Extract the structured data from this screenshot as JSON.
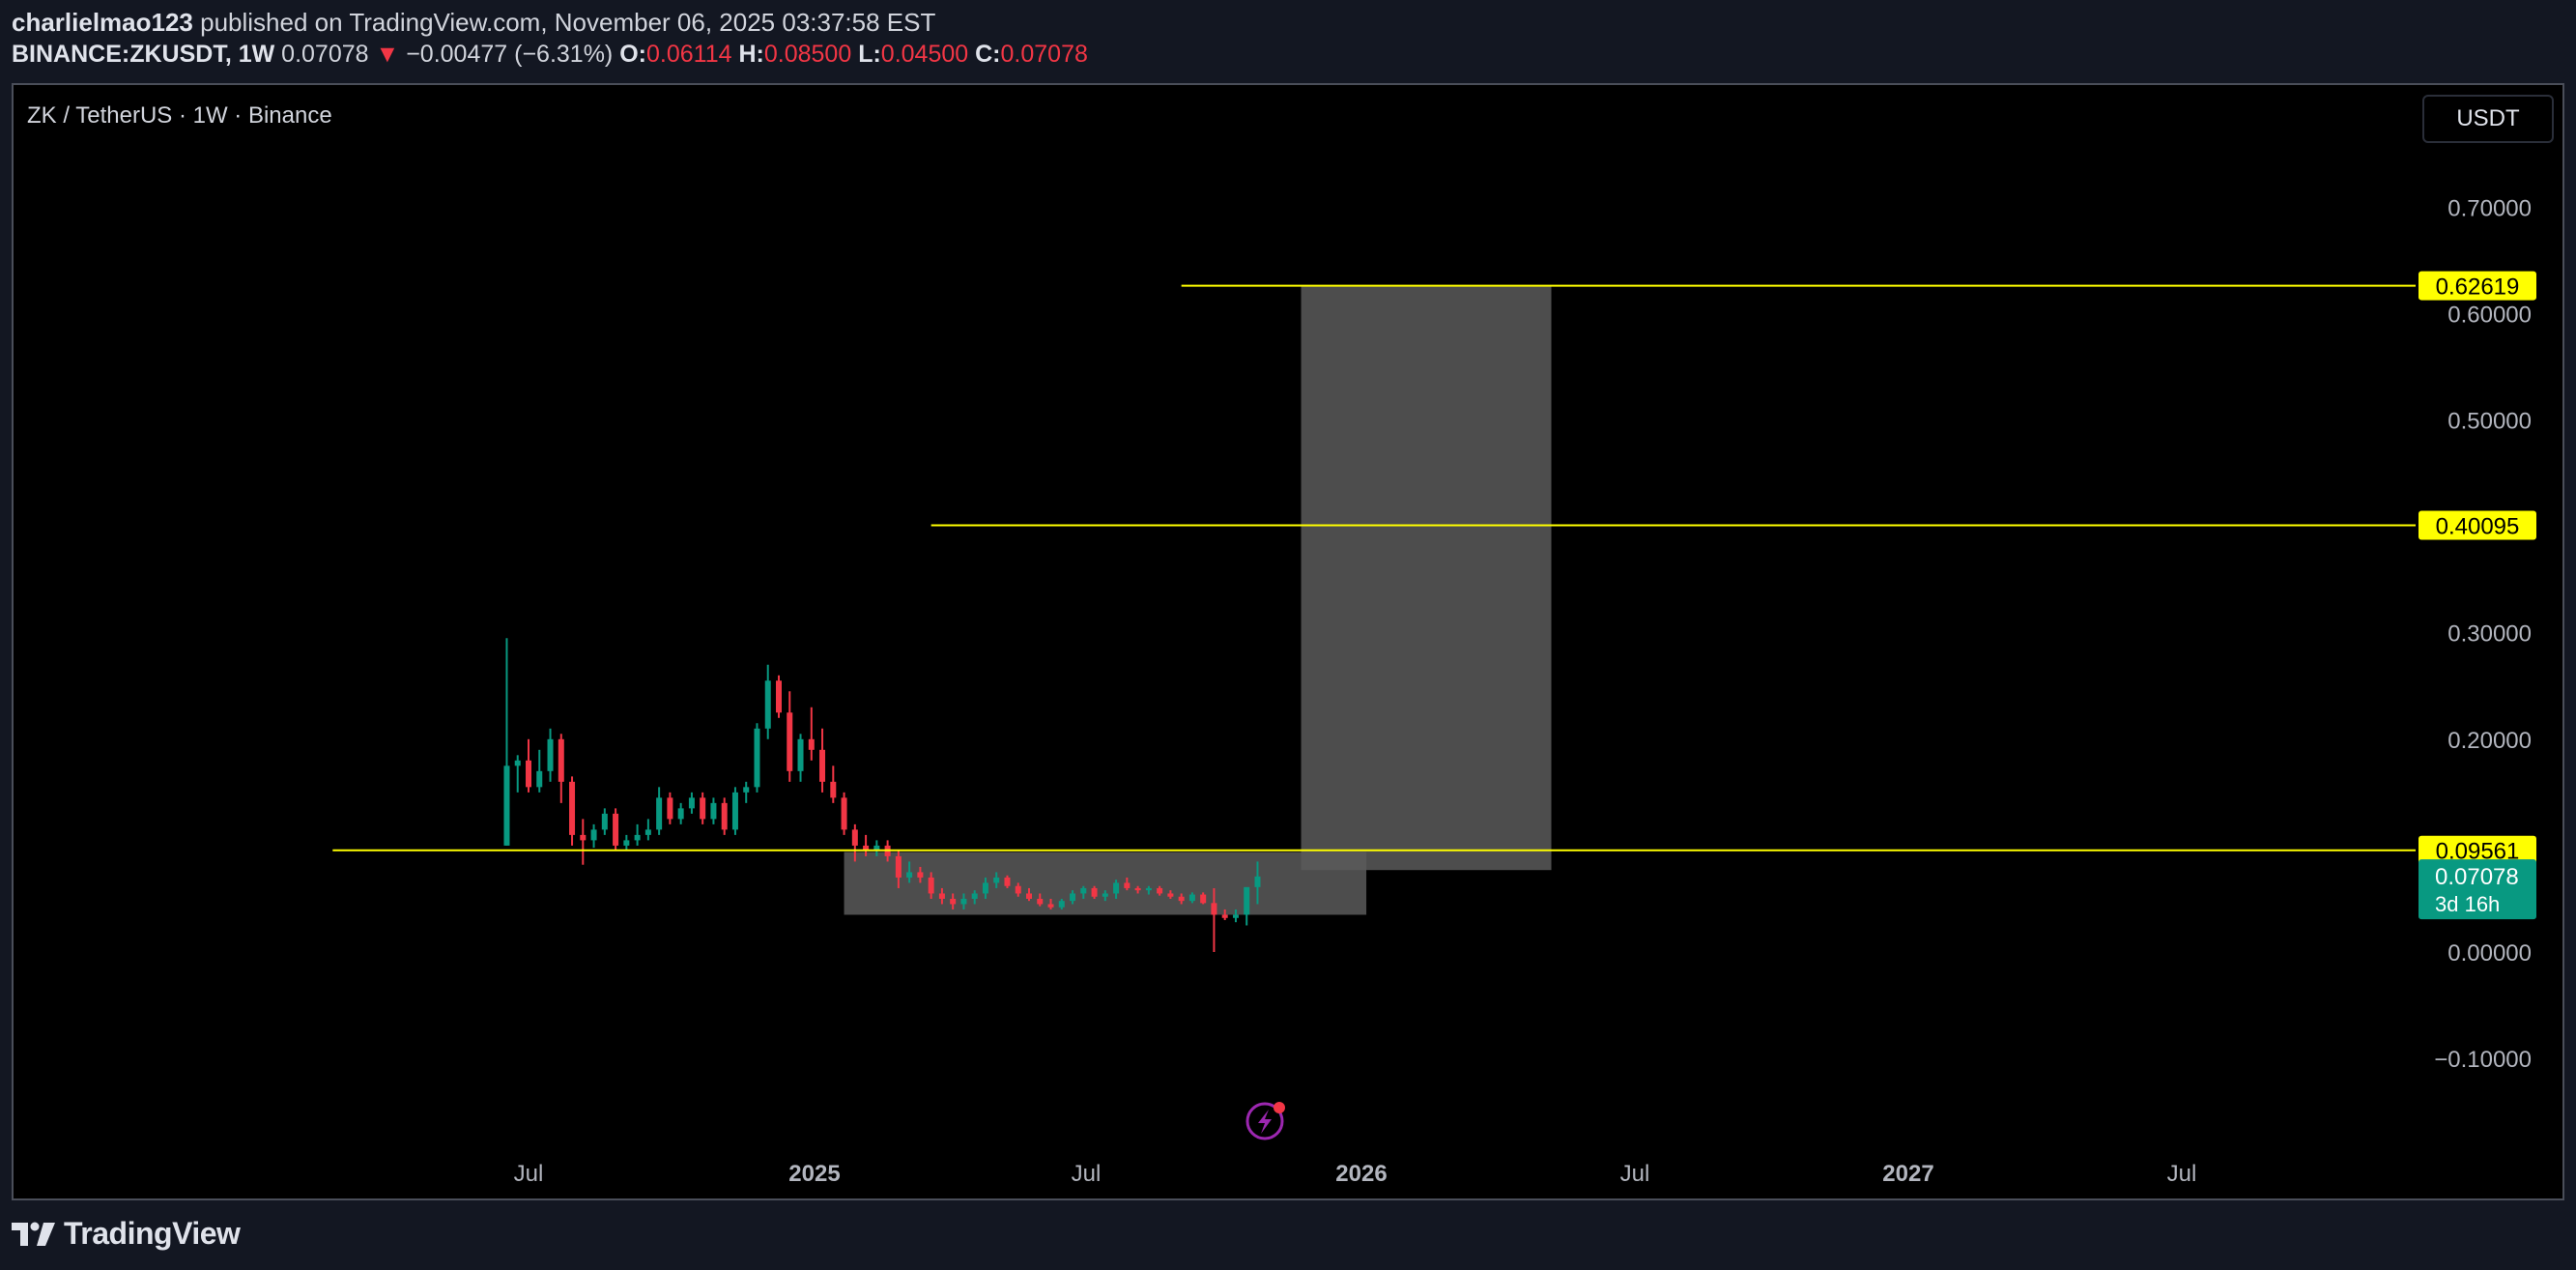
{
  "header": {
    "author": "charlielmao123",
    "published_text": "published on TradingView.com, November 06, 2025 03:37:58 EST",
    "symbol": "BINANCE:ZKUSDT, 1W",
    "last": "0.07078",
    "change_arrow": "▼",
    "change": "−0.00477 (−6.31%)",
    "o_label": "O:",
    "o_value": "0.06114",
    "h_label": "H:",
    "h_value": "0.08500",
    "l_label": "L:",
    "l_value": "0.04500",
    "c_label": "C:",
    "c_value": "0.07078"
  },
  "chart_title": "ZK / TetherUS · 1W · Binance",
  "currency_button": "USDT",
  "footer": {
    "logo_text": "TradingView",
    "logo_icon": "tradingview-logo-icon"
  },
  "colors": {
    "up": "#089981",
    "down": "#f23645",
    "level_line": "#ffff00",
    "zone_fill": "#5a5a5a",
    "price_label_bg": "#089981"
  },
  "chart_data": {
    "type": "candlestick",
    "title": "ZK / TetherUS · 1W · Binance",
    "y_ticks": [
      "0.70000",
      "0.60000",
      "0.50000",
      "0.40000",
      "0.30000",
      "0.20000",
      "0.00000",
      "−0.10000"
    ],
    "x_ticks": [
      "Jul",
      "2025",
      "Jul",
      "2026",
      "Jul",
      "2027",
      "Jul"
    ],
    "levels": [
      {
        "value": 0.62619,
        "label": "0.62619",
        "from_date": "2025-08-25"
      },
      {
        "value": 0.40095,
        "label": "0.40095",
        "from_date": "2025-03-17"
      },
      {
        "value": 0.09561,
        "label": "0.09561",
        "from_date": "2024-02-26"
      }
    ],
    "current_price": {
      "value": 0.07078,
      "label": "0.07078",
      "countdown": "3d 16h"
    },
    "zones": [
      {
        "x_start": "2025-01-20",
        "x_end": "2025-12-22",
        "y_low": 0.035,
        "y_high": 0.094
      },
      {
        "x_start": "2025-11-10",
        "x_end": "2026-04-20",
        "y_low": 0.077,
        "y_high": 0.626
      }
    ],
    "candles": [
      {
        "date": "2024-06-17",
        "o": 0.1,
        "h": 0.295,
        "l": 0.1,
        "c": 0.175
      },
      {
        "date": "2024-06-24",
        "o": 0.175,
        "h": 0.185,
        "l": 0.15,
        "c": 0.18
      },
      {
        "date": "2024-07-01",
        "o": 0.18,
        "h": 0.2,
        "l": 0.15,
        "c": 0.155
      },
      {
        "date": "2024-07-08",
        "o": 0.155,
        "h": 0.19,
        "l": 0.15,
        "c": 0.17
      },
      {
        "date": "2024-07-15",
        "o": 0.17,
        "h": 0.21,
        "l": 0.16,
        "c": 0.2
      },
      {
        "date": "2024-07-22",
        "o": 0.2,
        "h": 0.205,
        "l": 0.14,
        "c": 0.16
      },
      {
        "date": "2024-07-29",
        "o": 0.16,
        "h": 0.165,
        "l": 0.1,
        "c": 0.11
      },
      {
        "date": "2024-08-05",
        "o": 0.11,
        "h": 0.125,
        "l": 0.082,
        "c": 0.105
      },
      {
        "date": "2024-08-12",
        "o": 0.105,
        "h": 0.12,
        "l": 0.098,
        "c": 0.115
      },
      {
        "date": "2024-08-19",
        "o": 0.115,
        "h": 0.135,
        "l": 0.11,
        "c": 0.13
      },
      {
        "date": "2024-08-26",
        "o": 0.13,
        "h": 0.135,
        "l": 0.095,
        "c": 0.1
      },
      {
        "date": "2024-09-02",
        "o": 0.1,
        "h": 0.11,
        "l": 0.095,
        "c": 0.105
      },
      {
        "date": "2024-09-09",
        "o": 0.105,
        "h": 0.12,
        "l": 0.1,
        "c": 0.11
      },
      {
        "date": "2024-09-16",
        "o": 0.11,
        "h": 0.125,
        "l": 0.105,
        "c": 0.115
      },
      {
        "date": "2024-09-23",
        "o": 0.115,
        "h": 0.155,
        "l": 0.11,
        "c": 0.145
      },
      {
        "date": "2024-09-30",
        "o": 0.145,
        "h": 0.15,
        "l": 0.12,
        "c": 0.125
      },
      {
        "date": "2024-10-07",
        "o": 0.125,
        "h": 0.14,
        "l": 0.12,
        "c": 0.135
      },
      {
        "date": "2024-10-14",
        "o": 0.135,
        "h": 0.15,
        "l": 0.13,
        "c": 0.145
      },
      {
        "date": "2024-10-21",
        "o": 0.145,
        "h": 0.15,
        "l": 0.12,
        "c": 0.125
      },
      {
        "date": "2024-10-28",
        "o": 0.125,
        "h": 0.145,
        "l": 0.12,
        "c": 0.14
      },
      {
        "date": "2024-11-04",
        "o": 0.14,
        "h": 0.145,
        "l": 0.11,
        "c": 0.115
      },
      {
        "date": "2024-11-11",
        "o": 0.115,
        "h": 0.155,
        "l": 0.11,
        "c": 0.15
      },
      {
        "date": "2024-11-18",
        "o": 0.15,
        "h": 0.16,
        "l": 0.14,
        "c": 0.155
      },
      {
        "date": "2024-11-25",
        "o": 0.155,
        "h": 0.215,
        "l": 0.15,
        "c": 0.21
      },
      {
        "date": "2024-12-02",
        "o": 0.21,
        "h": 0.27,
        "l": 0.2,
        "c": 0.255
      },
      {
        "date": "2024-12-09",
        "o": 0.255,
        "h": 0.26,
        "l": 0.22,
        "c": 0.225
      },
      {
        "date": "2024-12-16",
        "o": 0.225,
        "h": 0.245,
        "l": 0.16,
        "c": 0.17
      },
      {
        "date": "2024-12-23",
        "o": 0.17,
        "h": 0.205,
        "l": 0.16,
        "c": 0.2
      },
      {
        "date": "2024-12-30",
        "o": 0.2,
        "h": 0.23,
        "l": 0.18,
        "c": 0.19
      },
      {
        "date": "2025-01-06",
        "o": 0.19,
        "h": 0.21,
        "l": 0.15,
        "c": 0.16
      },
      {
        "date": "2025-01-13",
        "o": 0.16,
        "h": 0.175,
        "l": 0.14,
        "c": 0.145
      },
      {
        "date": "2025-01-20",
        "o": 0.145,
        "h": 0.15,
        "l": 0.11,
        "c": 0.115
      },
      {
        "date": "2025-01-27",
        "o": 0.115,
        "h": 0.12,
        "l": 0.085,
        "c": 0.1
      },
      {
        "date": "2025-02-03",
        "o": 0.1,
        "h": 0.11,
        "l": 0.09,
        "c": 0.095
      },
      {
        "date": "2025-02-10",
        "o": 0.095,
        "h": 0.105,
        "l": 0.09,
        "c": 0.1
      },
      {
        "date": "2025-02-17",
        "o": 0.1,
        "h": 0.105,
        "l": 0.085,
        "c": 0.09
      },
      {
        "date": "2025-02-24",
        "o": 0.09,
        "h": 0.095,
        "l": 0.06,
        "c": 0.07
      },
      {
        "date": "2025-03-03",
        "o": 0.07,
        "h": 0.085,
        "l": 0.065,
        "c": 0.075
      },
      {
        "date": "2025-03-10",
        "o": 0.075,
        "h": 0.08,
        "l": 0.065,
        "c": 0.07
      },
      {
        "date": "2025-03-17",
        "o": 0.07,
        "h": 0.075,
        "l": 0.05,
        "c": 0.055
      },
      {
        "date": "2025-03-24",
        "o": 0.055,
        "h": 0.06,
        "l": 0.045,
        "c": 0.05
      },
      {
        "date": "2025-03-31",
        "o": 0.05,
        "h": 0.055,
        "l": 0.04,
        "c": 0.045
      },
      {
        "date": "2025-04-07",
        "o": 0.045,
        "h": 0.055,
        "l": 0.04,
        "c": 0.05
      },
      {
        "date": "2025-04-14",
        "o": 0.05,
        "h": 0.058,
        "l": 0.045,
        "c": 0.055
      },
      {
        "date": "2025-04-21",
        "o": 0.055,
        "h": 0.07,
        "l": 0.05,
        "c": 0.065
      },
      {
        "date": "2025-04-28",
        "o": 0.065,
        "h": 0.075,
        "l": 0.06,
        "c": 0.07
      },
      {
        "date": "2025-05-05",
        "o": 0.07,
        "h": 0.072,
        "l": 0.06,
        "c": 0.062
      },
      {
        "date": "2025-05-12",
        "o": 0.062,
        "h": 0.065,
        "l": 0.052,
        "c": 0.055
      },
      {
        "date": "2025-05-19",
        "o": 0.055,
        "h": 0.06,
        "l": 0.048,
        "c": 0.05
      },
      {
        "date": "2025-05-26",
        "o": 0.05,
        "h": 0.055,
        "l": 0.043,
        "c": 0.045
      },
      {
        "date": "2025-06-02",
        "o": 0.045,
        "h": 0.05,
        "l": 0.04,
        "c": 0.042
      },
      {
        "date": "2025-06-09",
        "o": 0.042,
        "h": 0.05,
        "l": 0.04,
        "c": 0.048
      },
      {
        "date": "2025-06-16",
        "o": 0.048,
        "h": 0.058,
        "l": 0.045,
        "c": 0.055
      },
      {
        "date": "2025-06-23",
        "o": 0.055,
        "h": 0.062,
        "l": 0.05,
        "c": 0.06
      },
      {
        "date": "2025-06-30",
        "o": 0.06,
        "h": 0.062,
        "l": 0.05,
        "c": 0.052
      },
      {
        "date": "2025-07-07",
        "o": 0.052,
        "h": 0.058,
        "l": 0.048,
        "c": 0.055
      },
      {
        "date": "2025-07-14",
        "o": 0.055,
        "h": 0.068,
        "l": 0.05,
        "c": 0.065
      },
      {
        "date": "2025-07-21",
        "o": 0.065,
        "h": 0.07,
        "l": 0.058,
        "c": 0.06
      },
      {
        "date": "2025-07-28",
        "o": 0.06,
        "h": 0.062,
        "l": 0.055,
        "c": 0.058
      },
      {
        "date": "2025-08-04",
        "o": 0.058,
        "h": 0.062,
        "l": 0.054,
        "c": 0.06
      },
      {
        "date": "2025-08-11",
        "o": 0.06,
        "h": 0.062,
        "l": 0.053,
        "c": 0.055
      },
      {
        "date": "2025-08-18",
        "o": 0.055,
        "h": 0.058,
        "l": 0.05,
        "c": 0.052
      },
      {
        "date": "2025-08-25",
        "o": 0.052,
        "h": 0.055,
        "l": 0.045,
        "c": 0.048
      },
      {
        "date": "2025-09-01",
        "o": 0.048,
        "h": 0.056,
        "l": 0.046,
        "c": 0.054
      },
      {
        "date": "2025-09-08",
        "o": 0.054,
        "h": 0.056,
        "l": 0.045,
        "c": 0.046
      },
      {
        "date": "2025-09-15",
        "o": 0.046,
        "h": 0.06,
        "l": 0.0,
        "c": 0.035
      },
      {
        "date": "2025-09-22",
        "o": 0.035,
        "h": 0.04,
        "l": 0.03,
        "c": 0.032
      },
      {
        "date": "2025-09-29",
        "o": 0.032,
        "h": 0.04,
        "l": 0.028,
        "c": 0.035
      },
      {
        "date": "2025-10-06",
        "o": 0.035,
        "h": 0.06,
        "l": 0.025,
        "c": 0.061
      },
      {
        "date": "2025-10-13",
        "o": 0.061,
        "h": 0.085,
        "l": 0.045,
        "c": 0.071
      }
    ]
  }
}
